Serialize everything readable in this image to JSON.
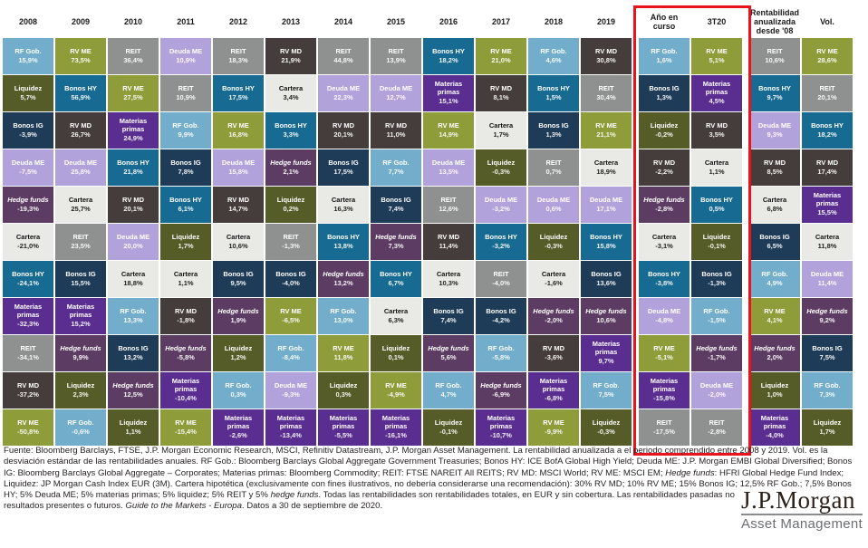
{
  "accent": {
    "highlight_border": "#e8131c"
  },
  "assets": {
    "rf_gob": {
      "label": "RF Gob.",
      "color": "#72aecb",
      "text": "#ffffff",
      "italic": false
    },
    "liquidez": {
      "label": "Liquidez",
      "color": "#565c28",
      "text": "#ffffff",
      "italic": false
    },
    "bonos_ig": {
      "label": "Bonos IG",
      "color": "#1e3c58",
      "text": "#ffffff",
      "italic": false
    },
    "deuda_me": {
      "label": "Deuda ME",
      "color": "#b2a2db",
      "text": "#ffffff",
      "italic": false
    },
    "hedge": {
      "label": "Hedge funds",
      "color": "#5d3c63",
      "text": "#ffffff",
      "italic": true
    },
    "cartera": {
      "label": "Cartera",
      "color": "#e9e9e5",
      "text": "#111111",
      "italic": false
    },
    "reit": {
      "label": "REIT",
      "color": "#8f9090",
      "text": "#ffffff",
      "italic": false
    },
    "bonos_hy": {
      "label": "Bonos HY",
      "color": "#176a91",
      "text": "#ffffff",
      "italic": false
    },
    "materias": {
      "label": "Materias primas",
      "color": "#5a2d90",
      "text": "#ffffff",
      "italic": false
    },
    "rv_md": {
      "label": "RV MD",
      "color": "#453d3b",
      "text": "#ffffff",
      "italic": false
    },
    "rv_me": {
      "label": "RV ME",
      "color": "#8e9c39",
      "text": "#ffffff",
      "italic": false
    }
  },
  "chart_data": {
    "type": "heatmap",
    "title": "Rentabilidad de las clases de activos (quilt chart)",
    "columns": [
      {
        "header": "2008",
        "cells": [
          {
            "asset": "rf_gob",
            "value": "15,9%"
          },
          {
            "asset": "liquidez",
            "value": "5,7%"
          },
          {
            "asset": "bonos_ig",
            "value": "-3,9%"
          },
          {
            "asset": "deuda_me",
            "value": "-7,5%"
          },
          {
            "asset": "hedge",
            "value": "-19,3%"
          },
          {
            "asset": "cartera",
            "value": "-21,0%"
          },
          {
            "asset": "bonos_hy",
            "value": "-24,1%"
          },
          {
            "asset": "materias",
            "value": "-32,3%"
          },
          {
            "asset": "reit",
            "value": "-34,1%"
          },
          {
            "asset": "rv_md",
            "value": "-37,2%"
          },
          {
            "asset": "rv_me",
            "value": "-50,8%"
          }
        ]
      },
      {
        "header": "2009",
        "cells": [
          {
            "asset": "rv_me",
            "value": "73,5%"
          },
          {
            "asset": "bonos_hy",
            "value": "56,9%"
          },
          {
            "asset": "rv_md",
            "value": "26,7%"
          },
          {
            "asset": "deuda_me",
            "value": "25,8%"
          },
          {
            "asset": "cartera",
            "value": "25,7%"
          },
          {
            "asset": "reit",
            "value": "23,5%"
          },
          {
            "asset": "bonos_ig",
            "value": "15,5%"
          },
          {
            "asset": "materias",
            "value": "15,2%"
          },
          {
            "asset": "hedge",
            "value": "9,9%"
          },
          {
            "asset": "liquidez",
            "value": "2,3%"
          },
          {
            "asset": "rf_gob",
            "value": "-0,6%"
          }
        ]
      },
      {
        "header": "2010",
        "cells": [
          {
            "asset": "reit",
            "value": "36,4%"
          },
          {
            "asset": "rv_me",
            "value": "27,5%"
          },
          {
            "asset": "materias",
            "value": "24,9%"
          },
          {
            "asset": "bonos_hy",
            "value": "21,8%"
          },
          {
            "asset": "rv_md",
            "value": "20,1%"
          },
          {
            "asset": "deuda_me",
            "value": "20,0%"
          },
          {
            "asset": "cartera",
            "value": "18,8%"
          },
          {
            "asset": "rf_gob",
            "value": "13,3%"
          },
          {
            "asset": "bonos_ig",
            "value": "13,2%"
          },
          {
            "asset": "hedge",
            "value": "12,5%"
          },
          {
            "asset": "liquidez",
            "value": "1,1%"
          }
        ]
      },
      {
        "header": "2011",
        "cells": [
          {
            "asset": "deuda_me",
            "value": "10,9%"
          },
          {
            "asset": "reit",
            "value": "10,9%"
          },
          {
            "asset": "rf_gob",
            "value": "9,9%"
          },
          {
            "asset": "bonos_ig",
            "value": "7,8%"
          },
          {
            "asset": "bonos_hy",
            "value": "6,1%"
          },
          {
            "asset": "liquidez",
            "value": "1,7%"
          },
          {
            "asset": "cartera",
            "value": "1,1%"
          },
          {
            "asset": "rv_md",
            "value": "-1,8%"
          },
          {
            "asset": "hedge",
            "value": "-5,8%"
          },
          {
            "asset": "materias",
            "value": "-10,4%"
          },
          {
            "asset": "rv_me",
            "value": "-15,4%"
          }
        ]
      },
      {
        "header": "2012",
        "cells": [
          {
            "asset": "reit",
            "value": "18,3%"
          },
          {
            "asset": "bonos_hy",
            "value": "17,5%"
          },
          {
            "asset": "rv_me",
            "value": "16,8%"
          },
          {
            "asset": "deuda_me",
            "value": "15,8%"
          },
          {
            "asset": "rv_md",
            "value": "14,7%"
          },
          {
            "asset": "cartera",
            "value": "10,6%"
          },
          {
            "asset": "bonos_ig",
            "value": "9,5%"
          },
          {
            "asset": "hedge",
            "value": "1,9%"
          },
          {
            "asset": "liquidez",
            "value": "1,2%"
          },
          {
            "asset": "rf_gob",
            "value": "0,3%"
          },
          {
            "asset": "materias",
            "value": "-2,6%"
          }
        ]
      },
      {
        "header": "2013",
        "cells": [
          {
            "asset": "rv_md",
            "value": "21,9%"
          },
          {
            "asset": "cartera",
            "value": "3,4%"
          },
          {
            "asset": "bonos_hy",
            "value": "3,3%"
          },
          {
            "asset": "hedge",
            "value": "2,1%"
          },
          {
            "asset": "liquidez",
            "value": "0,2%"
          },
          {
            "asset": "reit",
            "value": "-1,3%"
          },
          {
            "asset": "bonos_ig",
            "value": "-4,0%"
          },
          {
            "asset": "rv_me",
            "value": "-6,5%"
          },
          {
            "asset": "rf_gob",
            "value": "-8,4%"
          },
          {
            "asset": "deuda_me",
            "value": "-9,3%"
          },
          {
            "asset": "materias",
            "value": "-13,4%"
          }
        ]
      },
      {
        "header": "2014",
        "cells": [
          {
            "asset": "reit",
            "value": "44,8%"
          },
          {
            "asset": "deuda_me",
            "value": "22,3%"
          },
          {
            "asset": "rv_md",
            "value": "20,1%"
          },
          {
            "asset": "bonos_ig",
            "value": "17,5%"
          },
          {
            "asset": "cartera",
            "value": "16,3%"
          },
          {
            "asset": "bonos_hy",
            "value": "13,8%"
          },
          {
            "asset": "hedge",
            "value": "13,2%"
          },
          {
            "asset": "rf_gob",
            "value": "13,0%"
          },
          {
            "asset": "rv_me",
            "value": "11,8%"
          },
          {
            "asset": "liquidez",
            "value": "0,3%"
          },
          {
            "asset": "materias",
            "value": "-5,5%"
          }
        ]
      },
      {
        "header": "2015",
        "cells": [
          {
            "asset": "reit",
            "value": "13,9%"
          },
          {
            "asset": "deuda_me",
            "value": "12,7%"
          },
          {
            "asset": "rv_md",
            "value": "11,0%"
          },
          {
            "asset": "rf_gob",
            "value": "7,7%"
          },
          {
            "asset": "bonos_ig",
            "value": "7,4%"
          },
          {
            "asset": "hedge",
            "value": "7,3%"
          },
          {
            "asset": "bonos_hy",
            "value": "6,7%"
          },
          {
            "asset": "cartera",
            "value": "6,3%"
          },
          {
            "asset": "liquidez",
            "value": "0,1%"
          },
          {
            "asset": "rv_me",
            "value": "-4,9%"
          },
          {
            "asset": "materias",
            "value": "-16,1%"
          }
        ]
      },
      {
        "header": "2016",
        "cells": [
          {
            "asset": "bonos_hy",
            "value": "18,2%"
          },
          {
            "asset": "materias",
            "value": "15,1%"
          },
          {
            "asset": "rv_me",
            "value": "14,9%"
          },
          {
            "asset": "deuda_me",
            "value": "13,5%"
          },
          {
            "asset": "reit",
            "value": "12,6%"
          },
          {
            "asset": "rv_md",
            "value": "11,4%"
          },
          {
            "asset": "cartera",
            "value": "10,3%"
          },
          {
            "asset": "bonos_ig",
            "value": "7,4%"
          },
          {
            "asset": "hedge",
            "value": "5,6%"
          },
          {
            "asset": "rf_gob",
            "value": "4,7%"
          },
          {
            "asset": "liquidez",
            "value": "-0,1%"
          }
        ]
      },
      {
        "header": "2017",
        "cells": [
          {
            "asset": "rv_me",
            "value": "21,0%"
          },
          {
            "asset": "rv_md",
            "value": "8,1%"
          },
          {
            "asset": "cartera",
            "value": "1,7%"
          },
          {
            "asset": "liquidez",
            "value": "-0,3%"
          },
          {
            "asset": "deuda_me",
            "value": "-3,2%"
          },
          {
            "asset": "bonos_hy",
            "value": "-3,2%"
          },
          {
            "asset": "reit",
            "value": "-4,0%"
          },
          {
            "asset": "bonos_ig",
            "value": "-4,2%"
          },
          {
            "asset": "rf_gob",
            "value": "-5,8%"
          },
          {
            "asset": "hedge",
            "value": "-6,9%"
          },
          {
            "asset": "materias",
            "value": "-10,7%"
          }
        ]
      },
      {
        "header": "2018",
        "cells": [
          {
            "asset": "rf_gob",
            "value": "4,6%"
          },
          {
            "asset": "bonos_hy",
            "value": "1,5%"
          },
          {
            "asset": "bonos_ig",
            "value": "1,3%"
          },
          {
            "asset": "reit",
            "value": "0,7%"
          },
          {
            "asset": "deuda_me",
            "value": "0,6%"
          },
          {
            "asset": "liquidez",
            "value": "-0,3%"
          },
          {
            "asset": "cartera",
            "value": "-1,6%"
          },
          {
            "asset": "hedge",
            "value": "-2,0%"
          },
          {
            "asset": "rv_md",
            "value": "-3,6%"
          },
          {
            "asset": "materias",
            "value": "-6,8%"
          },
          {
            "asset": "rv_me",
            "value": "-9,9%"
          }
        ]
      },
      {
        "header": "2019",
        "cells": [
          {
            "asset": "rv_md",
            "value": "30,8%"
          },
          {
            "asset": "reit",
            "value": "30,4%"
          },
          {
            "asset": "rv_me",
            "value": "21,1%"
          },
          {
            "asset": "cartera",
            "value": "18,9%"
          },
          {
            "asset": "deuda_me",
            "value": "17,1%"
          },
          {
            "asset": "bonos_hy",
            "value": "15,8%"
          },
          {
            "asset": "bonos_ig",
            "value": "13,6%"
          },
          {
            "asset": "hedge",
            "value": "10,6%"
          },
          {
            "asset": "materias",
            "value": "9,7%"
          },
          {
            "asset": "rf_gob",
            "value": "7,5%"
          },
          {
            "asset": "liquidez",
            "value": "-0,3%"
          }
        ]
      },
      {
        "header": "Año en curso",
        "highlighted": true,
        "group_gap": true,
        "cells": [
          {
            "asset": "rf_gob",
            "value": "1,6%"
          },
          {
            "asset": "bonos_ig",
            "value": "1,3%"
          },
          {
            "asset": "liquidez",
            "value": "-0,2%"
          },
          {
            "asset": "rv_md",
            "value": "-2,2%"
          },
          {
            "asset": "hedge",
            "value": "-2,8%"
          },
          {
            "asset": "cartera",
            "value": "-3,1%"
          },
          {
            "asset": "bonos_hy",
            "value": "-3,8%"
          },
          {
            "asset": "deuda_me",
            "value": "-4,8%"
          },
          {
            "asset": "rv_me",
            "value": "-5,1%"
          },
          {
            "asset": "materias",
            "value": "-15,8%"
          },
          {
            "asset": "reit",
            "value": "-17,5%"
          }
        ]
      },
      {
        "header": "3T20",
        "highlighted": true,
        "cells": [
          {
            "asset": "rv_me",
            "value": "5,1%"
          },
          {
            "asset": "materias",
            "value": "4,5%"
          },
          {
            "asset": "rv_md",
            "value": "3,5%"
          },
          {
            "asset": "cartera",
            "value": "1,1%"
          },
          {
            "asset": "bonos_hy",
            "value": "0,5%"
          },
          {
            "asset": "liquidez",
            "value": "-0,1%"
          },
          {
            "asset": "bonos_ig",
            "value": "-1,3%"
          },
          {
            "asset": "rf_gob",
            "value": "-1,5%"
          },
          {
            "asset": "hedge",
            "value": "-1,7%"
          },
          {
            "asset": "deuda_me",
            "value": "-2,0%"
          },
          {
            "asset": "reit",
            "value": "-2,8%"
          }
        ]
      },
      {
        "header": "Rentabilidad anualizada desde '08",
        "group_gap": true,
        "cells": [
          {
            "asset": "reit",
            "value": "10,6%"
          },
          {
            "asset": "bonos_hy",
            "value": "9,7%"
          },
          {
            "asset": "deuda_me",
            "value": "9,3%"
          },
          {
            "asset": "rv_md",
            "value": "8,5%"
          },
          {
            "asset": "cartera",
            "value": "6,8%"
          },
          {
            "asset": "bonos_ig",
            "value": "6,5%"
          },
          {
            "asset": "rf_gob",
            "value": "4,9%"
          },
          {
            "asset": "rv_me",
            "value": "4,1%"
          },
          {
            "asset": "hedge",
            "value": "2,0%"
          },
          {
            "asset": "liquidez",
            "value": "1,0%"
          },
          {
            "asset": "materias",
            "value": "-4,0%"
          }
        ]
      },
      {
        "header": "Vol.",
        "cells": [
          {
            "asset": "rv_me",
            "value": "28,6%"
          },
          {
            "asset": "reit",
            "value": "20,1%"
          },
          {
            "asset": "bonos_hy",
            "value": "18,2%"
          },
          {
            "asset": "rv_md",
            "value": "17,4%"
          },
          {
            "asset": "materias",
            "value": "15,5%"
          },
          {
            "asset": "cartera",
            "value": "11,8%"
          },
          {
            "asset": "deuda_me",
            "value": "11,4%"
          },
          {
            "asset": "hedge",
            "value": "9,2%"
          },
          {
            "asset": "bonos_ig",
            "value": "7,5%"
          },
          {
            "asset": "rf_gob",
            "value": "7,3%"
          },
          {
            "asset": "liquidez",
            "value": "1,7%"
          }
        ]
      }
    ]
  },
  "footer": {
    "segments": [
      {
        "text": "Fuente: Bloomberg Barclays, FTSE, J.P. Morgan Economic Research, MSCI, Refinitiv Datastream, J.P. Morgan Asset Management. La rentabilidad anualizada a el periodo comprendido entre 2008 y 2019. Vol. es la desviación estándar de las rentabilidades anuales. RF Gob.: Bloomberg Barclays Global Aggregate Government Treasuries; Bonos HY: ICE BofA Global High Yield; Deuda ME: J.P. Morgan EMBI Global Diversified; Bonos IG: Bloomberg Barclays Global Aggregate – Corporates; Materias primas: Bloomberg Commodity; REIT: FTSE NAREIT All REITS; RV MD: MSCI World; RV ME: MSCI EM; ",
        "style": "normal"
      },
      {
        "text": "Hedge funds",
        "style": "italic"
      },
      {
        "text": ": HFRI Global Hedge Fund Index; Liquidez: JP Morgan Cash Index EUR (3M). Cartera hipotética (exclusivamente con fines ilustrativos, no debería considerarse una recomendación): 30% RV MD; 10% RV ME; 15% Bonos IG; 12,5% RF Gob.; 7,5% Bonos HY; 5% Deuda ME; 5% materias primas; 5% liquidez; 5% REIT y 5% ",
        "style": "normal"
      },
      {
        "text": "hedge funds",
        "style": "italic"
      },
      {
        "text": ". Todas las rentabilidades son rentabilidades totales, en EUR y sin cobertura. Las rentabilidades pasadas no son representativas de los resultados presentes o futuros. ",
        "style": "normal"
      },
      {
        "text": "Guide to the Markets - Europa",
        "style": "italic"
      },
      {
        "text": ". Datos a 30 de septiembre de 2020.",
        "style": "normal"
      }
    ]
  },
  "logo": {
    "title": "J.P.Morgan",
    "subtitle": "Asset Management"
  }
}
